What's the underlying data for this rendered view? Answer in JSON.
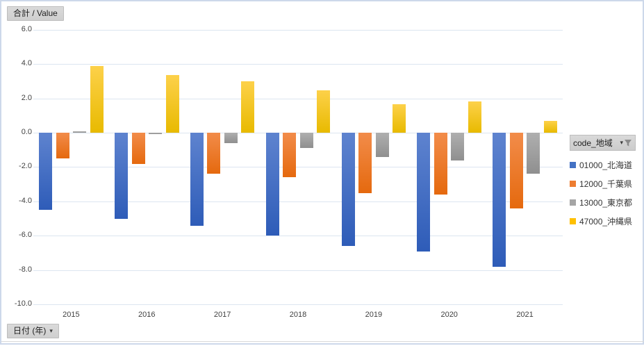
{
  "pivot": {
    "value_field_label": "合計 / Value",
    "date_field_label": "日付 (年)",
    "legend_field_label": "code_地域",
    "caret": "▾"
  },
  "colors": {
    "series_blue": "#4472C4",
    "series_orange": "#ED7D31",
    "series_gray": "#A5A5A5",
    "series_yellow": "#FFC000",
    "gridline": "#dce5f0",
    "border": "#cdd8ea",
    "button_bg": "#d4d4d4"
  },
  "chart_data": {
    "type": "bar",
    "title": "",
    "xlabel": "日付 (年)",
    "ylabel": "合計 / Value",
    "categories": [
      "2015",
      "2016",
      "2017",
      "2018",
      "2019",
      "2020",
      "2021"
    ],
    "series": [
      {
        "name": "01000_北海道",
        "color": "#4472C4",
        "fill_top": "#5E83CF",
        "fill_bottom": "#2E5CB8",
        "values": [
          -4.5,
          -5.0,
          -5.4,
          -6.0,
          -6.6,
          -6.9,
          -7.8
        ]
      },
      {
        "name": "12000_千葉県",
        "color": "#ED7D31",
        "fill_top": "#F28C4A",
        "fill_bottom": "#E5690E",
        "values": [
          -1.5,
          -1.8,
          -2.4,
          -2.6,
          -3.5,
          -3.6,
          -4.4
        ]
      },
      {
        "name": "13000_東京都",
        "color": "#A5A5A5",
        "fill_top": "#AFAFAF",
        "fill_bottom": "#8F8F8F",
        "values": [
          0.1,
          -0.1,
          -0.6,
          -0.9,
          -1.4,
          -1.6,
          -2.4
        ]
      },
      {
        "name": "47000_沖縄県",
        "color": "#FFC000",
        "fill_top": "#FDD14A",
        "fill_bottom": "#E8BA00",
        "values": [
          3.9,
          3.35,
          3.0,
          2.45,
          1.65,
          1.8,
          0.7
        ]
      }
    ],
    "ylim": [
      -10,
      6
    ],
    "ytick_step": 2,
    "ytick_labels": [
      "6.0",
      "4.0",
      "2.0",
      "0.0",
      "-2.0",
      "-4.0",
      "-6.0",
      "-8.0",
      "-10.0"
    ],
    "grid": true,
    "legend_position": "right"
  }
}
